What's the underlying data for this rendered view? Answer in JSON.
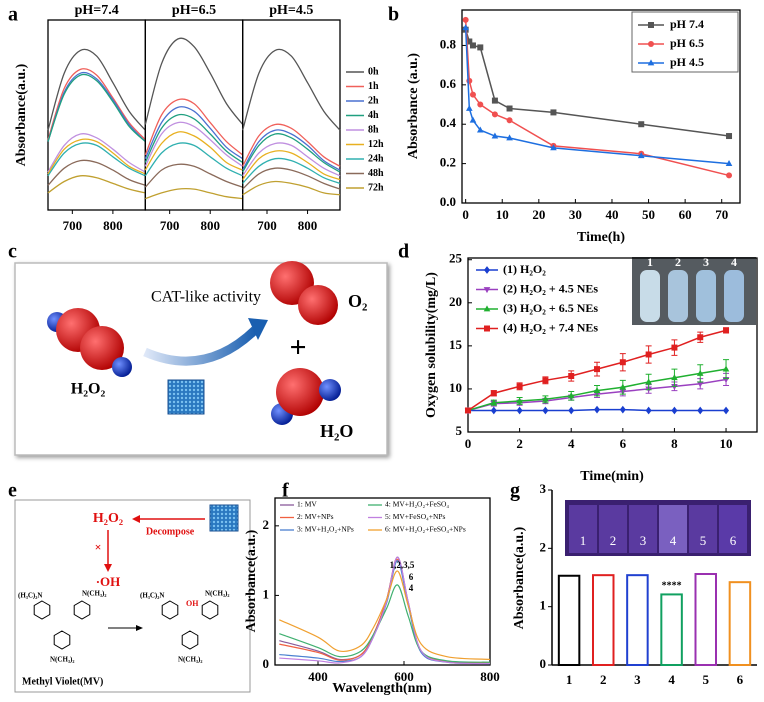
{
  "chart_data": [
    {
      "type": "spectra_panels",
      "label": "a",
      "ylabel": "Absorbance(a.u.)",
      "smooth": true,
      "x": [
        640,
        680,
        720,
        760,
        800,
        840,
        880
      ],
      "xlim": [
        640,
        880
      ],
      "ylim": [
        0,
        1
      ],
      "xticks": [
        700,
        800
      ],
      "series": [
        {
          "name": "0h",
          "color": "#555555"
        },
        {
          "name": "1h",
          "color": "#f0605a"
        },
        {
          "name": "2h",
          "color": "#4a70d0"
        },
        {
          "name": "4h",
          "color": "#20a080"
        },
        {
          "name": "8h",
          "color": "#c090e0"
        },
        {
          "name": "12h",
          "color": "#e8b020"
        },
        {
          "name": "24h",
          "color": "#30b0b0"
        },
        {
          "name": "48h",
          "color": "#8a6a5a"
        },
        {
          "name": "72h",
          "color": "#c0a030"
        }
      ],
      "panels": [
        {
          "title": "pH=7.4",
          "values": [
            [
              0.42,
              0.72,
              0.84,
              0.81,
              0.67,
              0.52,
              0.42
            ],
            [
              0.37,
              0.64,
              0.74,
              0.71,
              0.59,
              0.46,
              0.37
            ],
            [
              0.36,
              0.62,
              0.72,
              0.69,
              0.58,
              0.45,
              0.36
            ],
            [
              0.36,
              0.61,
              0.71,
              0.68,
              0.57,
              0.44,
              0.36
            ],
            [
              0.2,
              0.34,
              0.4,
              0.38,
              0.32,
              0.25,
              0.2
            ],
            [
              0.19,
              0.32,
              0.37,
              0.36,
              0.3,
              0.23,
              0.19
            ],
            [
              0.18,
              0.3,
              0.35,
              0.34,
              0.28,
              0.22,
              0.18
            ],
            [
              0.13,
              0.22,
              0.26,
              0.25,
              0.21,
              0.16,
              0.13
            ],
            [
              0.09,
              0.15,
              0.18,
              0.17,
              0.14,
              0.11,
              0.09
            ]
          ]
        },
        {
          "title": "pH=6.5",
          "values": [
            [
              0.45,
              0.77,
              0.9,
              0.86,
              0.72,
              0.56,
              0.45
            ],
            [
              0.29,
              0.5,
              0.58,
              0.56,
              0.46,
              0.36,
              0.29
            ],
            [
              0.27,
              0.46,
              0.54,
              0.52,
              0.43,
              0.33,
              0.27
            ],
            [
              0.25,
              0.43,
              0.5,
              0.48,
              0.4,
              0.31,
              0.25
            ],
            [
              0.23,
              0.4,
              0.46,
              0.44,
              0.37,
              0.29,
              0.23
            ],
            [
              0.21,
              0.35,
              0.41,
              0.39,
              0.33,
              0.25,
              0.21
            ],
            [
              0.18,
              0.3,
              0.35,
              0.34,
              0.28,
              0.22,
              0.18
            ],
            [
              0.12,
              0.21,
              0.24,
              0.23,
              0.19,
              0.15,
              0.12
            ],
            [
              0.06,
              0.09,
              0.11,
              0.11,
              0.09,
              0.07,
              0.06
            ]
          ]
        },
        {
          "title": "pH=4.5",
          "values": [
            [
              0.42,
              0.72,
              0.84,
              0.81,
              0.67,
              0.52,
              0.42
            ],
            [
              0.23,
              0.39,
              0.45,
              0.43,
              0.36,
              0.28,
              0.23
            ],
            [
              0.21,
              0.36,
              0.42,
              0.4,
              0.34,
              0.26,
              0.21
            ],
            [
              0.2,
              0.34,
              0.4,
              0.38,
              0.32,
              0.25,
              0.2
            ],
            [
              0.18,
              0.3,
              0.35,
              0.34,
              0.28,
              0.22,
              0.18
            ],
            [
              0.16,
              0.27,
              0.31,
              0.3,
              0.25,
              0.19,
              0.16
            ],
            [
              0.14,
              0.23,
              0.27,
              0.26,
              0.22,
              0.17,
              0.14
            ],
            [
              0.11,
              0.19,
              0.22,
              0.21,
              0.18,
              0.14,
              0.11
            ],
            [
              0.08,
              0.13,
              0.15,
              0.14,
              0.12,
              0.09,
              0.08
            ]
          ]
        }
      ]
    },
    {
      "type": "line",
      "label": "b",
      "xlabel": "Time(h)",
      "ylabel": "Absorbance (a.u.)",
      "x": [
        0,
        1,
        2,
        4,
        8,
        12,
        24,
        48,
        72
      ],
      "xlim": [
        -1,
        75
      ],
      "ylim": [
        0,
        0.98
      ],
      "xticks": [
        0,
        10,
        20,
        30,
        40,
        50,
        60,
        70
      ],
      "yticks": [
        {
          "value": 0,
          "label": "0.0"
        },
        0.2,
        0.4,
        0.6,
        0.8
      ],
      "series": [
        {
          "name": "pH 7.4",
          "color": "#555555",
          "marker": "square",
          "values": [
            0.88,
            0.82,
            0.8,
            0.79,
            0.52,
            0.48,
            0.46,
            0.4,
            0.34
          ]
        },
        {
          "name": "pH 6.5",
          "color": "#f05050",
          "marker": "circle",
          "values": [
            0.93,
            0.62,
            0.55,
            0.5,
            0.45,
            0.42,
            0.29,
            0.25,
            0.14
          ]
        },
        {
          "name": "pH 4.5",
          "color": "#1e6fe0",
          "marker": "triangle-up",
          "values": [
            0.89,
            0.48,
            0.42,
            0.37,
            0.34,
            0.33,
            0.28,
            0.24,
            0.2
          ]
        }
      ]
    },
    {
      "type": "line",
      "label": "d",
      "xlabel": "Time(min)",
      "ylabel": "Oxygen solubility(mg/L)",
      "x": [
        0,
        1,
        2,
        3,
        4,
        5,
        6,
        7,
        8,
        9,
        10
      ],
      "xlim": [
        0,
        11.2
      ],
      "ylim": [
        5,
        25.2
      ],
      "xticks": [
        0,
        2,
        4,
        6,
        8,
        10
      ],
      "yticks": [
        5,
        10,
        15,
        20,
        25
      ],
      "inset_labels": [
        "1",
        "2",
        "3",
        "4"
      ],
      "series": [
        {
          "name": "(1) H₂O₂",
          "color": "#1a3fd0",
          "marker": "diamond",
          "values": [
            7.5,
            7.5,
            7.5,
            7.5,
            7.5,
            7.6,
            7.6,
            7.5,
            7.5,
            7.5,
            7.5
          ]
        },
        {
          "name": "(2) H₂O₂ + 4.5 NEs",
          "color": "#9a40c0",
          "marker": "triangle-down",
          "values": [
            7.5,
            8.3,
            8.4,
            8.6,
            9.0,
            9.4,
            9.7,
            10.0,
            10.3,
            10.6,
            11.1
          ],
          "errors": [
            0,
            0.3,
            0.3,
            0.3,
            0.3,
            0.4,
            0.5,
            0.5,
            0.5,
            0.6,
            0.7
          ]
        },
        {
          "name": "(3) H₂O₂ + 6.5 NEs",
          "color": "#20b030",
          "marker": "triangle-up",
          "values": [
            7.5,
            8.4,
            8.6,
            8.8,
            9.2,
            9.8,
            10.2,
            10.8,
            11.3,
            11.8,
            12.3
          ],
          "errors": [
            0,
            0.3,
            0.4,
            0.4,
            0.5,
            0.6,
            0.8,
            0.9,
            1.0,
            1.0,
            1.1
          ]
        },
        {
          "name": "(4) H₂O₂ + 7.4 NEs",
          "color": "#e02020",
          "marker": "square",
          "values": [
            7.5,
            9.5,
            10.3,
            11.0,
            11.5,
            12.3,
            13.1,
            14.0,
            14.8,
            16.0,
            16.8
          ],
          "errors": [
            0,
            0.3,
            0.4,
            0.4,
            0.6,
            0.8,
            1.0,
            1.0,
            0.9,
            0.6,
            0.3
          ]
        }
      ]
    },
    {
      "type": "line",
      "label": "f",
      "xlabel": "Wavelength(nm)",
      "ylabel": "Absorbance(a.u.)",
      "smooth": true,
      "x": [
        310,
        400,
        450,
        500,
        530,
        560,
        585,
        610,
        640,
        700,
        800
      ],
      "xlim": [
        300,
        800
      ],
      "ylim": [
        0,
        2.4
      ],
      "xticks": [
        400,
        600,
        800
      ],
      "yticks": [
        0,
        1,
        2
      ],
      "peak_labels": [
        "1,2,3,5",
        "6",
        "4"
      ],
      "series": [
        {
          "name": "1: MV",
          "color": "#8a5a9a",
          "values": [
            0.35,
            0.2,
            0.08,
            0.15,
            0.45,
            0.95,
            1.55,
            0.9,
            0.2,
            0.05,
            0.03
          ]
        },
        {
          "name": "2: MV+NPs",
          "color": "#f06040",
          "values": [
            0.3,
            0.18,
            0.07,
            0.15,
            0.45,
            0.95,
            1.52,
            0.88,
            0.2,
            0.05,
            0.03
          ]
        },
        {
          "name": "3: MV+H₂O₂+NPs",
          "color": "#4a80d0",
          "values": [
            0.15,
            0.1,
            0.05,
            0.12,
            0.42,
            0.9,
            1.5,
            0.85,
            0.18,
            0.04,
            0.02
          ]
        },
        {
          "name": "4: MV+H₂O₂+FeSO₄",
          "color": "#40b070",
          "values": [
            0.45,
            0.25,
            0.12,
            0.2,
            0.45,
            0.82,
            1.15,
            0.7,
            0.2,
            0.06,
            0.04
          ]
        },
        {
          "name": "5: MV+FeSO₄+NPs",
          "color": "#c080e0",
          "values": [
            0.1,
            0.06,
            0.03,
            0.12,
            0.42,
            0.92,
            1.55,
            0.9,
            0.2,
            0.04,
            0.02
          ]
        },
        {
          "name": "6: MV+H₂O₂+FeSO₄+NPs",
          "color": "#f0a030",
          "values": [
            0.65,
            0.4,
            0.2,
            0.28,
            0.55,
            0.95,
            1.35,
            0.85,
            0.3,
            0.12,
            0.08
          ]
        }
      ]
    },
    {
      "type": "bar",
      "label": "g",
      "ylabel": "Absorbance(a.u.)",
      "categories": [
        "1",
        "2",
        "3",
        "4",
        "5",
        "6"
      ],
      "values": [
        1.53,
        1.54,
        1.54,
        1.21,
        1.56,
        1.42
      ],
      "colors": [
        "#000000",
        "#e02020",
        "#2040d0",
        "#10a060",
        "#9a30b0",
        "#f09020"
      ],
      "ylim": [
        0,
        3
      ],
      "yticks": [
        0,
        1,
        2,
        3
      ],
      "annotation": {
        "text": "****",
        "at": "4"
      }
    }
  ],
  "diagrams": {
    "c": {
      "label": "c",
      "activity": "CAT-like activity",
      "reactant": "H₂O₂",
      "product1": "O₂",
      "plus": "+",
      "product2": "H₂O"
    },
    "e": {
      "label": "e",
      "h2o2": "H₂O₂",
      "decompose": "Decompose",
      "cross": "×",
      "radical": "·OH",
      "left_n": "(H₃C)₂N",
      "right_n": "N(CH₃)₂",
      "bottom_n": "N(CH₃)₂",
      "oh": "OH",
      "caption": "Methyl Violet(MV)"
    }
  }
}
